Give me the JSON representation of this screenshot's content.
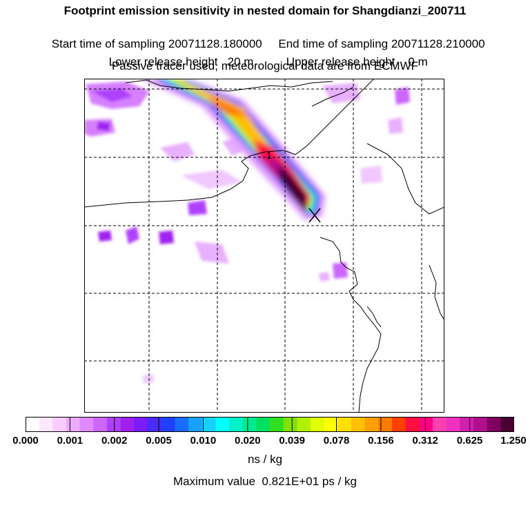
{
  "header": {
    "title": "Footprint emission sensitivity in nested domain for Shangdianzi_200711",
    "sampling_start": "Start time of sampling 20071128.180000",
    "sampling_end": "End time of sampling 20071128.210000",
    "lower_release": "Lower release height   20 m",
    "upper_release": "Upper release height    0 m",
    "tracer_note": "Passive tracer used, meteorological data are from ECMWF"
  },
  "map": {
    "contour_label": "1",
    "release_marker": "release-site-cross"
  },
  "colorbar": {
    "colors": [
      "#ffffff",
      "#fde7ff",
      "#f8ccff",
      "#eeaaff",
      "#e088ff",
      "#cc66ff",
      "#b040ff",
      "#a020f0",
      "#7a1cff",
      "#4a2bff",
      "#2040ff",
      "#1a6bff",
      "#1aa0ff",
      "#16d0ff",
      "#00ffff",
      "#00f0c8",
      "#00e890",
      "#00e060",
      "#30e020",
      "#80e000",
      "#b0f000",
      "#e0ff00",
      "#ffff00",
      "#ffe000",
      "#ffc000",
      "#ffa000",
      "#ff7a00",
      "#ff4000",
      "#ff1040",
      "#ff0080",
      "#ff40b0",
      "#f030c0",
      "#d020b0",
      "#b01090",
      "#800060",
      "#4a0030"
    ],
    "ticks": [
      "0.000",
      "0.001",
      "0.002",
      "0.005",
      "0.010",
      "0.020",
      "0.039",
      "0.078",
      "0.156",
      "0.312",
      "0.625",
      "1.250"
    ],
    "units": "ns / kg"
  },
  "footer": {
    "max_value": "Maximum value  0.821E+01 ps / kg"
  }
}
